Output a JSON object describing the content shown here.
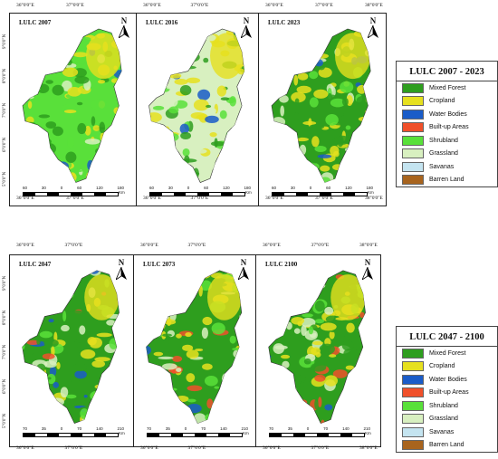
{
  "rows": [
    {
      "maps": [
        {
          "title": "LULC 2007",
          "scale": [
            "60",
            "30",
            "0",
            "60",
            "120",
            "180"
          ],
          "unit": "Km"
        },
        {
          "title": "LULC 2016",
          "scale": [
            "60",
            "30",
            "0",
            "60",
            "120",
            "180"
          ],
          "unit": "Km"
        },
        {
          "title": "LULC 2023",
          "scale": [
            "60",
            "30",
            "0",
            "60",
            "120",
            "180"
          ],
          "unit": "Km"
        }
      ],
      "legend": {
        "title": "LULC 2007 - 2023"
      }
    },
    {
      "maps": [
        {
          "title": "LULC 2047",
          "scale": [
            "70",
            "35",
            "0",
            "70",
            "140",
            "210"
          ],
          "unit": "Km"
        },
        {
          "title": "LULC 2073",
          "scale": [
            "70",
            "35",
            "0",
            "70",
            "140",
            "210"
          ],
          "unit": "Km"
        },
        {
          "title": "LULC 2100",
          "scale": [
            "70",
            "35",
            "0",
            "70",
            "140",
            "210"
          ],
          "unit": "Km"
        }
      ],
      "legend": {
        "title": "LULC 2047 - 2100"
      }
    }
  ],
  "north_label": "N",
  "lon_labels": [
    "36°0'0\"E",
    "37°0'0\"E",
    "38°0'0\"E"
  ],
  "lat_labels": [
    "9°0'0\"N",
    "8°0'0\"N",
    "7°0'0\"N",
    "6°0'0\"N",
    "5°0'0\"N"
  ],
  "classes": [
    {
      "name": "Mixed Forest",
      "color": "#2e9e1e"
    },
    {
      "name": "Cropland",
      "color": "#e6e01e"
    },
    {
      "name": "Water Bodies",
      "color": "#1a5cc8"
    },
    {
      "name": "Built-up Areas",
      "color": "#f0502a"
    },
    {
      "name": "Shrubland",
      "color": "#59e03a"
    },
    {
      "name": "Grassland",
      "color": "#d8f0c0"
    },
    {
      "name": "Savanas",
      "color": "#c4e4f0"
    },
    {
      "name": "Barren Land",
      "color": "#a8641e"
    }
  ]
}
